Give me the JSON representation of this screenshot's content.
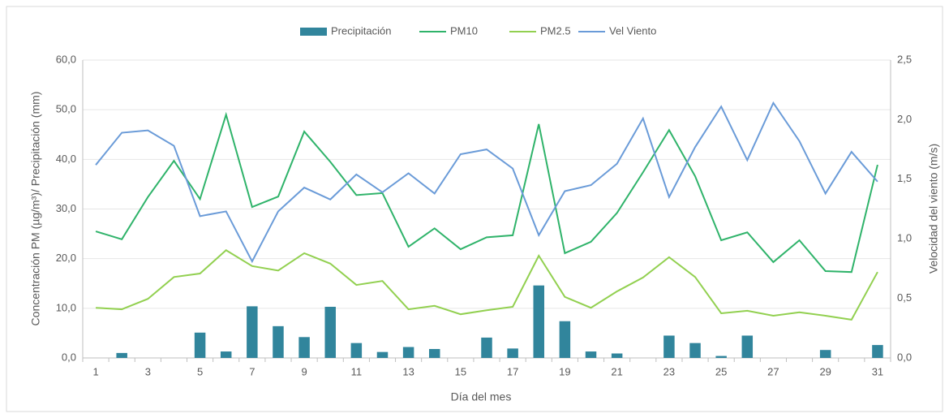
{
  "chart_data": {
    "type": "bar-line",
    "x_label": "Día del mes",
    "y_label": "Concentración PM (µg/m³)/ Precipitación (mm)",
    "y2_label": "Velocidad del viento (m/s)",
    "categories": [
      "1",
      null,
      "3",
      null,
      "5",
      null,
      "7",
      null,
      "9",
      null,
      "11",
      null,
      "13",
      null,
      "15",
      null,
      "17",
      null,
      "19",
      null,
      "21",
      null,
      "23",
      null,
      "25",
      null,
      "27",
      null,
      "29",
      null,
      "31"
    ],
    "series": [
      {
        "name": "Precipitación",
        "kind": "bar",
        "color": "#31859c",
        "values": [
          0,
          1.0,
          0,
          0,
          5.1,
          1.3,
          10.4,
          6.4,
          4.2,
          10.3,
          3.0,
          1.2,
          2.2,
          1.8,
          0,
          4.1,
          1.9,
          14.6,
          7.4,
          1.3,
          0.9,
          0,
          4.5,
          3.0,
          0.4,
          4.5,
          0,
          0,
          1.6,
          0,
          2.6
        ]
      },
      {
        "name": "PM10",
        "kind": "line",
        "color": "#2fb36a",
        "values": [
          25.5,
          23.9,
          32.4,
          39.7,
          32.0,
          49.0,
          30.4,
          32.5,
          45.6,
          39.5,
          32.8,
          33.2,
          22.4,
          26.1,
          21.9,
          24.3,
          24.7,
          47.1,
          21.1,
          23.4,
          29.2,
          37.4,
          45.9,
          36.6,
          23.7,
          25.3,
          19.3,
          23.7,
          17.5,
          17.3,
          38.9
        ]
      },
      {
        "name": "PM2.5",
        "kind": "line",
        "color": "#92d050",
        "values": [
          10.1,
          9.8,
          11.9,
          16.3,
          17.0,
          21.7,
          18.5,
          17.6,
          21.1,
          19.0,
          14.7,
          15.5,
          9.8,
          10.5,
          8.8,
          9.6,
          10.3,
          20.6,
          12.3,
          10.1,
          13.4,
          16.2,
          20.3,
          16.3,
          9.0,
          9.5,
          8.5,
          9.2,
          8.5,
          7.7,
          17.3
        ]
      },
      {
        "name": "Vel Viento",
        "kind": "line",
        "axis": "y2",
        "color": "#6a9bd8",
        "values": [
          1.62,
          1.89,
          1.91,
          1.78,
          1.19,
          1.23,
          0.81,
          1.23,
          1.43,
          1.33,
          1.54,
          1.39,
          1.55,
          1.38,
          1.71,
          1.75,
          1.59,
          1.03,
          1.4,
          1.45,
          1.63,
          2.01,
          1.35,
          1.77,
          2.11,
          1.66,
          2.14,
          1.82,
          1.38,
          1.73,
          1.48
        ]
      }
    ],
    "ylim": [
      0,
      60
    ],
    "yticks": [
      {
        "value": 0,
        "label": "0,0"
      },
      {
        "value": 10,
        "label": "10,0"
      },
      {
        "value": 20,
        "label": "20,0"
      },
      {
        "value": 30,
        "label": "30,0"
      },
      {
        "value": 40,
        "label": "40,0"
      },
      {
        "value": 50,
        "label": "50,0"
      },
      {
        "value": 60,
        "label": "60,0"
      }
    ],
    "y2lim": [
      0,
      2.5
    ],
    "y2ticks": [
      {
        "value": 0,
        "label": "0,0"
      },
      {
        "value": 0.5,
        "label": "0,5"
      },
      {
        "value": 1,
        "label": "1,0"
      },
      {
        "value": 1.5,
        "label": "1,5"
      },
      {
        "value": 2,
        "label": "2,0"
      },
      {
        "value": 2.5,
        "label": "2,5"
      }
    ],
    "grid": true,
    "legend": "top"
  }
}
